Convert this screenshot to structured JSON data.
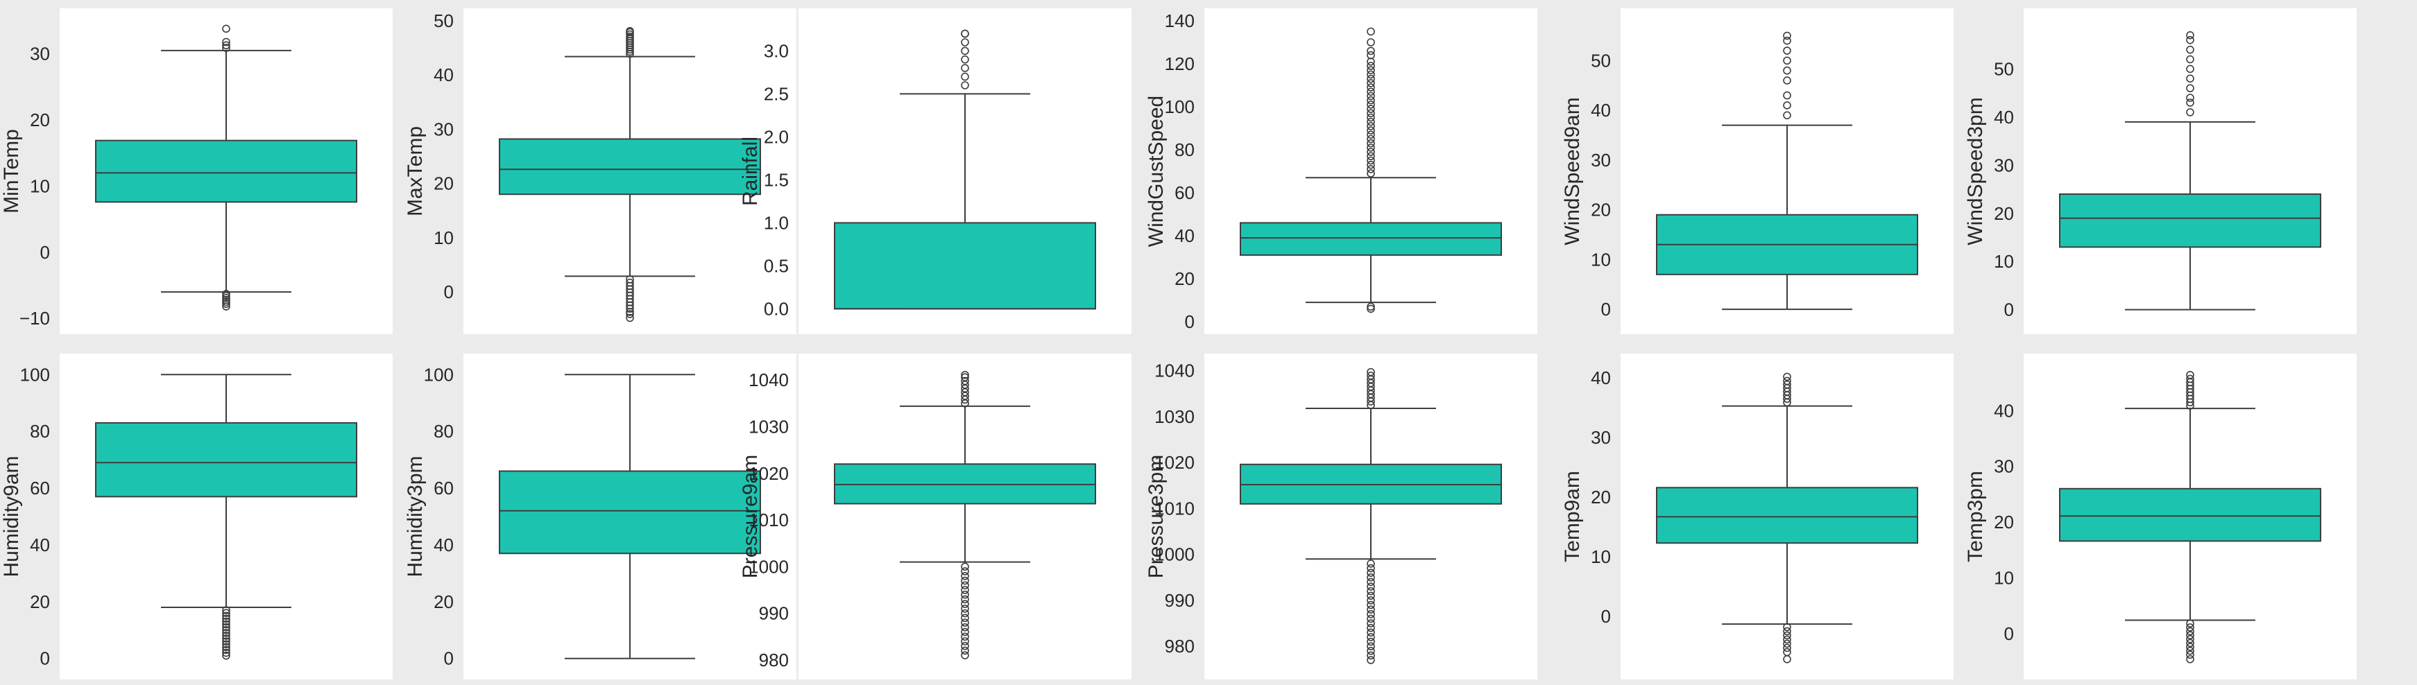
{
  "style": {
    "box_color": "#1cc4b0",
    "line_color": "#3d3d3d",
    "panel_bg": "#ffffff",
    "figure_bg": "#ebebeb"
  },
  "chart_data": [
    {
      "type": "box",
      "ylabel": "MinTemp",
      "ylim": [
        -10.5,
        35
      ],
      "yticks": [
        -10,
        0,
        10,
        20,
        30
      ],
      "tick_labels": [
        "−10",
        "0",
        "10",
        "20",
        "30"
      ],
      "stats": {
        "whislo": -6,
        "q1": 7.6,
        "med": 12.0,
        "q3": 16.9,
        "whishi": 30.5
      },
      "fliers": [
        -6.3,
        -6.6,
        -6.9,
        -7.2,
        -7.5,
        -7.8,
        -8.2,
        30.9,
        31.3,
        31.8,
        33.8
      ]
    },
    {
      "type": "box",
      "ylabel": "MaxTemp",
      "ylim": [
        -5.5,
        50
      ],
      "yticks": [
        0,
        10,
        20,
        30,
        40,
        50
      ],
      "tick_labels": [
        "0",
        "10",
        "20",
        "30",
        "40",
        "50"
      ],
      "stats": {
        "whislo": 2.9,
        "q1": 18.0,
        "med": 22.6,
        "q3": 28.2,
        "whishi": 43.4
      },
      "fliers": [
        2.3,
        1.7,
        1.1,
        0.5,
        -0.1,
        -0.7,
        -1.3,
        -1.9,
        -2.5,
        -3.1,
        -3.7,
        -4.1,
        -4.8,
        43.9,
        44.3,
        44.7,
        45.1,
        45.5,
        45.9,
        46.3,
        46.7,
        47.1,
        47.5,
        47.9,
        48.1
      ]
    },
    {
      "type": "box",
      "ylabel": "Rainfall",
      "ylim": [
        -0.15,
        3.35
      ],
      "yticks": [
        0,
        0.5,
        1,
        1.5,
        2,
        2.5,
        3
      ],
      "tick_labels": [
        "0.0",
        "0.5",
        "1.0",
        "1.5",
        "2.0",
        "2.5",
        "3.0"
      ],
      "stats": {
        "whislo": 0,
        "q1": 0,
        "med": 0,
        "q3": 1.0,
        "whishi": 2.5
      },
      "fliers": [
        2.6,
        2.7,
        2.8,
        2.9,
        3.0,
        3.1,
        3.2,
        3.2
      ]
    },
    {
      "type": "box",
      "ylabel": "WindGustSpeed",
      "ylim": [
        0,
        140
      ],
      "yticks": [
        0,
        20,
        40,
        60,
        80,
        100,
        120,
        140
      ],
      "tick_labels": [
        "0",
        "20",
        "40",
        "60",
        "80",
        "100",
        "120",
        "140"
      ],
      "stats": {
        "whislo": 9,
        "q1": 31,
        "med": 39,
        "q3": 46,
        "whishi": 67
      },
      "fliers": [
        7,
        6,
        69,
        71,
        73,
        75,
        77,
        79,
        81,
        83,
        85,
        87,
        89,
        91,
        93,
        95,
        97,
        99,
        101,
        103,
        105,
        107,
        109,
        111,
        113,
        115,
        117,
        119,
        121,
        124,
        126,
        130,
        135
      ]
    },
    {
      "type": "box",
      "ylabel": "WindSpeed9am",
      "ylim": [
        -2.5,
        58
      ],
      "yticks": [
        0,
        10,
        20,
        30,
        40,
        50
      ],
      "tick_labels": [
        "0",
        "10",
        "20",
        "30",
        "40",
        "50"
      ],
      "stats": {
        "whislo": 0,
        "q1": 7,
        "med": 13,
        "q3": 19,
        "whishi": 37
      },
      "fliers": [
        39,
        41,
        43,
        46,
        48,
        50,
        52,
        54,
        55
      ]
    },
    {
      "type": "box",
      "ylabel": "WindSpeed3pm",
      "ylim": [
        -2.5,
        60
      ],
      "yticks": [
        0,
        10,
        20,
        30,
        40,
        50
      ],
      "tick_labels": [
        "0",
        "10",
        "20",
        "30",
        "40",
        "50"
      ],
      "stats": {
        "whislo": 0,
        "q1": 13,
        "med": 19,
        "q3": 24,
        "whishi": 39
      },
      "fliers": [
        41,
        43,
        44,
        46,
        48,
        50,
        52,
        54,
        56,
        57
      ]
    },
    {
      "type": "box",
      "ylabel": "Humidity9am",
      "ylim": [
        -3,
        103
      ],
      "yticks": [
        0,
        20,
        40,
        60,
        80,
        100
      ],
      "tick_labels": [
        "0",
        "20",
        "40",
        "60",
        "80",
        "100"
      ],
      "stats": {
        "whislo": 18,
        "q1": 57,
        "med": 69,
        "q3": 83,
        "whishi": 100
      },
      "fliers": [
        17,
        16,
        15,
        14,
        13,
        12,
        11,
        10,
        9,
        8,
        7,
        6,
        5,
        4,
        3,
        2,
        1
      ]
    },
    {
      "type": "box",
      "ylabel": "Humidity3pm",
      "ylim": [
        -3,
        103
      ],
      "yticks": [
        0,
        20,
        40,
        60,
        80,
        100
      ],
      "tick_labels": [
        "0",
        "20",
        "40",
        "60",
        "80",
        "100"
      ],
      "stats": {
        "whislo": 0,
        "q1": 37,
        "med": 52,
        "q3": 66,
        "whishi": 100
      },
      "fliers": []
    },
    {
      "type": "box",
      "ylabel": "Pressure9am",
      "ylim": [
        978.5,
        1043
      ],
      "yticks": [
        980,
        990,
        1000,
        1010,
        1020,
        1030,
        1040
      ],
      "tick_labels": [
        "980",
        "990",
        "1000",
        "1010",
        "1020",
        "1030",
        "1040"
      ],
      "stats": {
        "whislo": 1001,
        "q1": 1013.5,
        "med": 1017.6,
        "q3": 1022,
        "whishi": 1034.4
      },
      "fliers": [
        1000,
        999,
        998,
        997,
        996,
        995,
        994,
        993,
        992,
        991,
        990,
        989,
        988,
        987,
        986,
        985,
        984,
        983,
        982,
        981,
        1035,
        1035.8,
        1036.6,
        1037.4,
        1038.2,
        1039,
        1039.8,
        1040.6,
        1041.1
      ]
    },
    {
      "type": "box",
      "ylabel": "Pressure3pm",
      "ylim": [
        975.5,
        1041
      ],
      "yticks": [
        980,
        990,
        1000,
        1010,
        1020,
        1030,
        1040
      ],
      "tick_labels": [
        "980",
        "990",
        "1000",
        "1010",
        "1020",
        "1030",
        "1040"
      ],
      "stats": {
        "whislo": 999,
        "q1": 1011,
        "med": 1015.2,
        "q3": 1019.6,
        "whishi": 1031.8
      },
      "fliers": [
        998,
        997,
        996,
        995,
        994,
        993,
        992,
        991,
        990,
        989,
        988,
        987,
        986,
        985,
        984,
        983,
        982,
        981,
        980,
        979,
        978,
        977,
        1032.5,
        1033.3,
        1034.1,
        1034.9,
        1035.7,
        1036.5,
        1037.3,
        1038.1,
        1038.9,
        1039.7
      ]
    },
    {
      "type": "box",
      "ylabel": "Temp9am",
      "ylim": [
        -8.5,
        42
      ],
      "yticks": [
        0,
        10,
        20,
        30,
        40
      ],
      "tick_labels": [
        "0",
        "10",
        "20",
        "30",
        "40"
      ],
      "stats": {
        "whislo": -1.3,
        "q1": 12.3,
        "med": 16.7,
        "q3": 21.6,
        "whishi": 35.3
      },
      "fliers": [
        -1.8,
        -2.5,
        -3.2,
        -3.9,
        -4.6,
        -5.3,
        -6,
        -7.2,
        35.9,
        36.5,
        37.1,
        37.7,
        38.3,
        38.9,
        39.5,
        40.2
      ]
    },
    {
      "type": "box",
      "ylabel": "Temp3pm",
      "ylim": [
        -6,
        48
      ],
      "yticks": [
        0,
        10,
        20,
        30,
        40
      ],
      "tick_labels": [
        "0",
        "10",
        "20",
        "30",
        "40"
      ],
      "stats": {
        "whislo": 2.4,
        "q1": 16.6,
        "med": 21.1,
        "q3": 26.0,
        "whishi": 40.4
      },
      "fliers": [
        1.8,
        1.1,
        0.4,
        -0.3,
        -1,
        -1.7,
        -2.4,
        -3.1,
        -3.8,
        -4.6,
        40.9,
        41.5,
        42.1,
        42.7,
        43.3,
        43.9,
        44.5,
        45.1,
        45.7,
        46.4
      ]
    }
  ]
}
